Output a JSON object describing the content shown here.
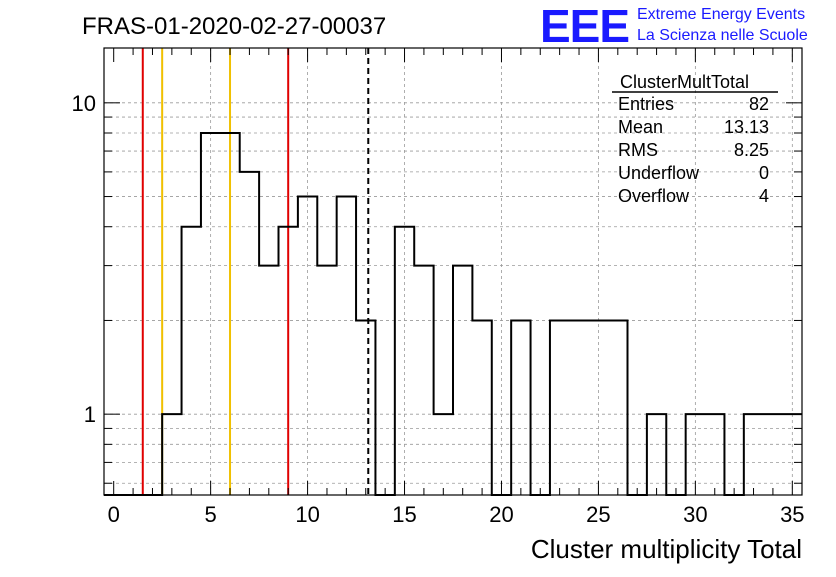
{
  "title": "FRAS-01-2020-02-27-00037",
  "logo": {
    "letters": "EEE",
    "line1": "Extreme Energy Events",
    "line2": "La Scienza nelle Scuole"
  },
  "stats": {
    "name": "ClusterMultTotal",
    "rows": [
      {
        "label": "Entries",
        "value": "82"
      },
      {
        "label": "Mean",
        "value": "13.13"
      },
      {
        "label": "RMS",
        "value": "8.25"
      },
      {
        "label": "Underflow",
        "value": "0"
      },
      {
        "label": "Overflow",
        "value": "4"
      }
    ]
  },
  "chart_data": {
    "type": "histogram",
    "xlabel": "Cluster multiplicity Total",
    "ylabel": "",
    "xlim": [
      -0.5,
      35.5
    ],
    "ylim": [
      0.55,
      15
    ],
    "yscale": "log",
    "grid": true,
    "xticks": [
      0,
      5,
      10,
      15,
      20,
      25,
      30,
      35
    ],
    "yticks": [
      1,
      10
    ],
    "bin_width": 1,
    "bins": [
      {
        "x": 0,
        "count": 0
      },
      {
        "x": 1,
        "count": 0
      },
      {
        "x": 2,
        "count": 0
      },
      {
        "x": 3,
        "count": 1
      },
      {
        "x": 4,
        "count": 4
      },
      {
        "x": 5,
        "count": 8
      },
      {
        "x": 6,
        "count": 8
      },
      {
        "x": 7,
        "count": 6
      },
      {
        "x": 8,
        "count": 3
      },
      {
        "x": 9,
        "count": 4
      },
      {
        "x": 10,
        "count": 5
      },
      {
        "x": 11,
        "count": 3
      },
      {
        "x": 12,
        "count": 5
      },
      {
        "x": 13,
        "count": 2
      },
      {
        "x": 14,
        "count": 0
      },
      {
        "x": 15,
        "count": 4
      },
      {
        "x": 16,
        "count": 3
      },
      {
        "x": 17,
        "count": 1
      },
      {
        "x": 18,
        "count": 3
      },
      {
        "x": 19,
        "count": 2
      },
      {
        "x": 20,
        "count": 0
      },
      {
        "x": 21,
        "count": 2
      },
      {
        "x": 22,
        "count": 0
      },
      {
        "x": 23,
        "count": 2
      },
      {
        "x": 24,
        "count": 2
      },
      {
        "x": 25,
        "count": 2
      },
      {
        "x": 26,
        "count": 2
      },
      {
        "x": 27,
        "count": 0
      },
      {
        "x": 28,
        "count": 1
      },
      {
        "x": 29,
        "count": 0
      },
      {
        "x": 30,
        "count": 1
      },
      {
        "x": 31,
        "count": 1
      },
      {
        "x": 32,
        "count": 0
      },
      {
        "x": 33,
        "count": 1
      },
      {
        "x": 34,
        "count": 1
      },
      {
        "x": 35,
        "count": 1
      }
    ],
    "vertical_lines": [
      {
        "x": 1.5,
        "color": "#e00000",
        "style": "solid"
      },
      {
        "x": 2.5,
        "color": "#f0c000",
        "style": "solid"
      },
      {
        "x": 6.0,
        "color": "#f0c000",
        "style": "solid"
      },
      {
        "x": 9.0,
        "color": "#e00000",
        "style": "solid"
      },
      {
        "x": 13.13,
        "color": "#000000",
        "style": "dashed"
      }
    ]
  }
}
